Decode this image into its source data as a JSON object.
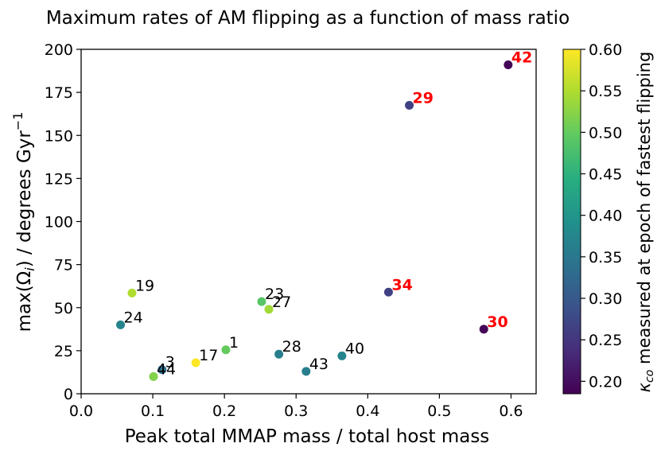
{
  "chart_data": {
    "type": "scatter",
    "title": "Maximum rates of AM flipping as a function of mass ratio",
    "xlabel": "Peak total MMAP mass / total host mass",
    "ylabel": "max(Ω_i) / degrees Gyr^-1",
    "xlim": [
      0.0,
      0.635
    ],
    "ylim": [
      0,
      200
    ],
    "xticks": [
      "0.0",
      "0.1",
      "0.2",
      "0.3",
      "0.4",
      "0.5",
      "0.6"
    ],
    "yticks": [
      "0",
      "25",
      "50",
      "75",
      "100",
      "125",
      "150",
      "175",
      "200"
    ],
    "grid": false,
    "colorbar": {
      "label": "κ_co measured at epoch of fastest flipping",
      "min": 0.185,
      "max": 0.6,
      "ticks": [
        "0.20",
        "0.25",
        "0.30",
        "0.35",
        "0.40",
        "0.45",
        "0.50",
        "0.55",
        "0.60"
      ],
      "colormap": "viridis"
    },
    "points": [
      {
        "label": "42",
        "x": 0.596,
        "y": 191,
        "kappa": 0.19,
        "highlight": true
      },
      {
        "label": "29",
        "x": 0.458,
        "y": 167.5,
        "kappa": 0.265,
        "highlight": true
      },
      {
        "label": "34",
        "x": 0.429,
        "y": 59,
        "kappa": 0.265,
        "highlight": true
      },
      {
        "label": "30",
        "x": 0.562,
        "y": 37.5,
        "kappa": 0.19,
        "highlight": true
      },
      {
        "label": "19",
        "x": 0.071,
        "y": 58.5,
        "kappa": 0.55,
        "highlight": false
      },
      {
        "label": "24",
        "x": 0.055,
        "y": 40,
        "kappa": 0.37,
        "highlight": false
      },
      {
        "label": "23",
        "x": 0.252,
        "y": 53.5,
        "kappa": 0.49,
        "highlight": false
      },
      {
        "label": "27",
        "x": 0.262,
        "y": 49,
        "kappa": 0.54,
        "highlight": false
      },
      {
        "label": "1",
        "x": 0.202,
        "y": 25.5,
        "kappa": 0.5,
        "highlight": false
      },
      {
        "label": "17",
        "x": 0.16,
        "y": 18,
        "kappa": 0.6,
        "highlight": false
      },
      {
        "label": "3",
        "x": 0.113,
        "y": 14,
        "kappa": 0.34,
        "highlight": false
      },
      {
        "label": "44",
        "x": 0.101,
        "y": 10,
        "kappa": 0.52,
        "highlight": false
      },
      {
        "label": "28",
        "x": 0.276,
        "y": 23,
        "kappa": 0.36,
        "highlight": false
      },
      {
        "label": "43",
        "x": 0.314,
        "y": 13,
        "kappa": 0.36,
        "highlight": false
      },
      {
        "label": "40",
        "x": 0.364,
        "y": 22,
        "kappa": 0.37,
        "highlight": false
      }
    ],
    "colors": {
      "highlight_label": "#ff0000",
      "normal_label": "#000000"
    }
  }
}
